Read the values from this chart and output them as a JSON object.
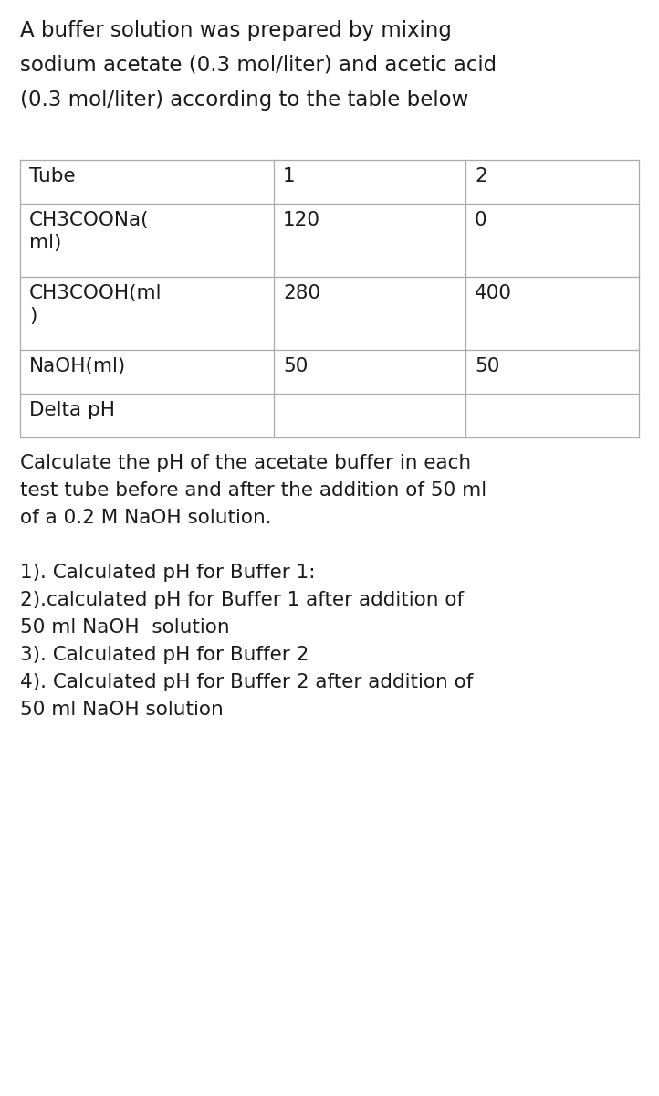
{
  "bg_color": "#ffffff",
  "text_color": "#1a1a1a",
  "title_lines": [
    "A buffer solution was prepared by mixing",
    "sodium acetate (0.3 mol/liter) and acetic acid",
    "(0.3 mol/liter) according to the table below"
  ],
  "table_col0_labels": [
    "Tube",
    "CH3COONa(\nml)",
    "CH3COOH(ml\n)",
    "NaOH(ml)",
    "Delta pH"
  ],
  "table_col1": [
    "1",
    "120",
    "280",
    "50",
    ""
  ],
  "table_col2": [
    "2",
    "0",
    "400",
    "50",
    ""
  ],
  "paragraph1_lines": [
    "Calculate the pH of the acetate buffer in each",
    "test tube before and after the addition of 50 ml",
    "of a 0.2 M NaOH solution."
  ],
  "questions": [
    "1). Calculated pH for Buffer 1:",
    "2).calculated pH for Buffer 1 after addition of",
    "50 ml NaOH  solution",
    "3). Calculated pH for Buffer 2",
    "4). Calculated pH for Buffer 2 after addition of",
    "50 ml NaOH solution"
  ],
  "line_color": "#aaaaaa",
  "font_size": 15.5,
  "title_font_size": 16.5
}
